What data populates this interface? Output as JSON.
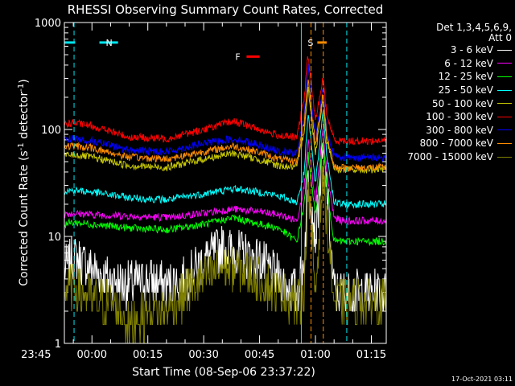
{
  "chart_data": {
    "type": "line",
    "title": "RHESSI Observing Summary Count Rates, Corrected",
    "xlabel": "Start Time (08-Sep-06 23:37:22)",
    "ylabel": "Corrected Count Rate (s⁻¹ detector⁻¹)",
    "yscale": "log",
    "ylim": [
      1,
      1000
    ],
    "xlim_minutes": [
      -7.4,
      79
    ],
    "x_unit": "minutes after 00:00 UT (09-Sep-06)",
    "x_ticks": [
      {
        "m": -15,
        "label": "23:45"
      },
      {
        "m": 0,
        "label": "00:00"
      },
      {
        "m": 15,
        "label": "00:15"
      },
      {
        "m": 30,
        "label": "00:30"
      },
      {
        "m": 45,
        "label": "00:45"
      },
      {
        "m": 60,
        "label": "01:00"
      },
      {
        "m": 75,
        "label": "01:15"
      }
    ],
    "y_ticks": [
      {
        "v": 1,
        "label": "1"
      },
      {
        "v": 10,
        "label": "10"
      },
      {
        "v": 100,
        "label": "100"
      },
      {
        "v": 1000,
        "label": "1000"
      }
    ],
    "legend_header": [
      "Det 1,3,4,5,6,9,",
      "Att 0"
    ],
    "series": [
      {
        "name": "3 - 6 keV",
        "color": "#ffffff",
        "x": [
          -30,
          -20,
          -10,
          -5,
          0,
          5,
          10,
          15,
          20,
          25,
          30,
          35,
          40,
          45,
          50,
          55,
          57,
          58,
          60,
          62,
          63,
          65,
          67,
          70,
          75,
          79
        ],
        "y": [
          3.5,
          3.5,
          3.5,
          6.5,
          5,
          4,
          3.5,
          4,
          3.5,
          4,
          6,
          8,
          7,
          6,
          4,
          3,
          6,
          40,
          10,
          60,
          30,
          3,
          3,
          3,
          3,
          3
        ]
      },
      {
        "name": "6 - 12 keV",
        "color": "#ff00ff",
        "x": [
          -30,
          -15,
          -5,
          0,
          10,
          20,
          30,
          38,
          45,
          50,
          55,
          57,
          58,
          60,
          62,
          63,
          65,
          67,
          70,
          79
        ],
        "y": [
          15,
          15.5,
          16.5,
          16,
          15.5,
          15,
          16.5,
          18,
          17,
          16,
          14,
          30,
          80,
          20,
          100,
          40,
          15,
          14,
          14,
          14
        ]
      },
      {
        "name": "12 - 25 keV",
        "color": "#00ff00",
        "x": [
          -30,
          -15,
          -5,
          0,
          10,
          20,
          30,
          38,
          45,
          50,
          55,
          57,
          58,
          60,
          62,
          63,
          65,
          67,
          70,
          79
        ],
        "y": [
          11.5,
          12,
          13.5,
          13,
          12,
          11.5,
          13,
          15,
          13,
          12,
          9,
          20,
          60,
          15,
          80,
          30,
          9,
          9,
          9,
          9
        ]
      },
      {
        "name": "25 - 50 keV",
        "color": "#00ffff",
        "x": [
          -30,
          -15,
          -5,
          0,
          10,
          20,
          30,
          38,
          45,
          50,
          55,
          57,
          58,
          60,
          62,
          63,
          65,
          67,
          70,
          79
        ],
        "y": [
          24,
          25,
          27,
          26,
          23,
          22,
          25,
          28,
          26,
          24,
          21,
          40,
          150,
          30,
          150,
          60,
          21,
          20,
          20,
          20
        ]
      },
      {
        "name": "50 - 100 keV",
        "color": "#c8c800",
        "x": [
          -30,
          -20,
          -5,
          0,
          10,
          20,
          30,
          38,
          45,
          50,
          55,
          57,
          58,
          60,
          62,
          63,
          65,
          67,
          70,
          79
        ],
        "y": [
          51,
          52,
          58,
          55,
          46,
          44,
          53,
          60,
          52,
          46,
          44,
          100,
          250,
          60,
          200,
          80,
          44,
          42,
          42,
          42
        ]
      },
      {
        "name": "100 - 300 keV",
        "color": "#ff0000",
        "x": [
          -30,
          -15,
          -5,
          0,
          10,
          20,
          30,
          38,
          45,
          50,
          55,
          57,
          58,
          60,
          62,
          63,
          65,
          67,
          70,
          79
        ],
        "y": [
          102,
          105,
          115,
          108,
          85,
          82,
          100,
          120,
          100,
          88,
          84,
          200,
          500,
          120,
          300,
          140,
          80,
          78,
          78,
          78
        ]
      },
      {
        "name": "300 - 800 keV",
        "color": "#0000ff",
        "x": [
          -30,
          -15,
          -5,
          0,
          10,
          20,
          30,
          38,
          45,
          50,
          55,
          57,
          58,
          60,
          62,
          63,
          65,
          67,
          70,
          79
        ],
        "y": [
          79,
          80,
          82,
          78,
          64,
          62,
          74,
          82,
          72,
          62,
          60,
          140,
          400,
          80,
          250,
          100,
          56,
          55,
          55,
          55
        ]
      },
      {
        "name": "800 - 7000 keV",
        "color": "#ff8c00",
        "x": [
          -30,
          -15,
          -5,
          0,
          10,
          20,
          30,
          38,
          45,
          50,
          55,
          57,
          58,
          60,
          62,
          63,
          65,
          67,
          70,
          79
        ],
        "y": [
          66,
          67,
          70,
          67,
          55,
          53,
          62,
          70,
          61,
          53,
          50,
          120,
          300,
          70,
          220,
          90,
          45,
          44,
          44,
          44
        ]
      },
      {
        "name": "7000 - 15000 keV",
        "color": "#808000",
        "x": [
          -30,
          -20,
          -10,
          -5,
          0,
          5,
          10,
          15,
          20,
          25,
          30,
          35,
          40,
          45,
          50,
          55,
          57,
          58,
          60,
          62,
          63,
          65,
          67,
          70,
          79
        ],
        "y": [
          2.5,
          2.5,
          2.5,
          3.5,
          2.5,
          2.5,
          1.5,
          2,
          2,
          3,
          4,
          5,
          5,
          4,
          3,
          2.5,
          3,
          30,
          3,
          40,
          15,
          2.5,
          2.5,
          2.5,
          2.5
        ]
      }
    ],
    "status_bars": {
      "N": {
        "label": "N",
        "color": "#00e5ee",
        "ranges_minutes": [
          [
            -7.4,
            -4.5
          ],
          [
            2,
            7
          ]
        ],
        "level": 650
      },
      "F": {
        "label": "F",
        "color": "#ff0000",
        "ranges_minutes": [
          [
            41.5,
            45
          ]
        ],
        "level": 480
      },
      "S": {
        "label": "S",
        "color": "#ff8c00",
        "ranges_minutes": [
          [
            60.5,
            63
          ]
        ],
        "level": 650
      }
    },
    "night_boundaries_minutes": [
      -4.8,
      56.2,
      68.4
    ],
    "saa_boundaries_minutes": [
      58.8,
      62.1
    ],
    "grid": false,
    "legend_position": "right"
  },
  "footer": {
    "timestamp": "17-Oct-2021 03:11"
  }
}
